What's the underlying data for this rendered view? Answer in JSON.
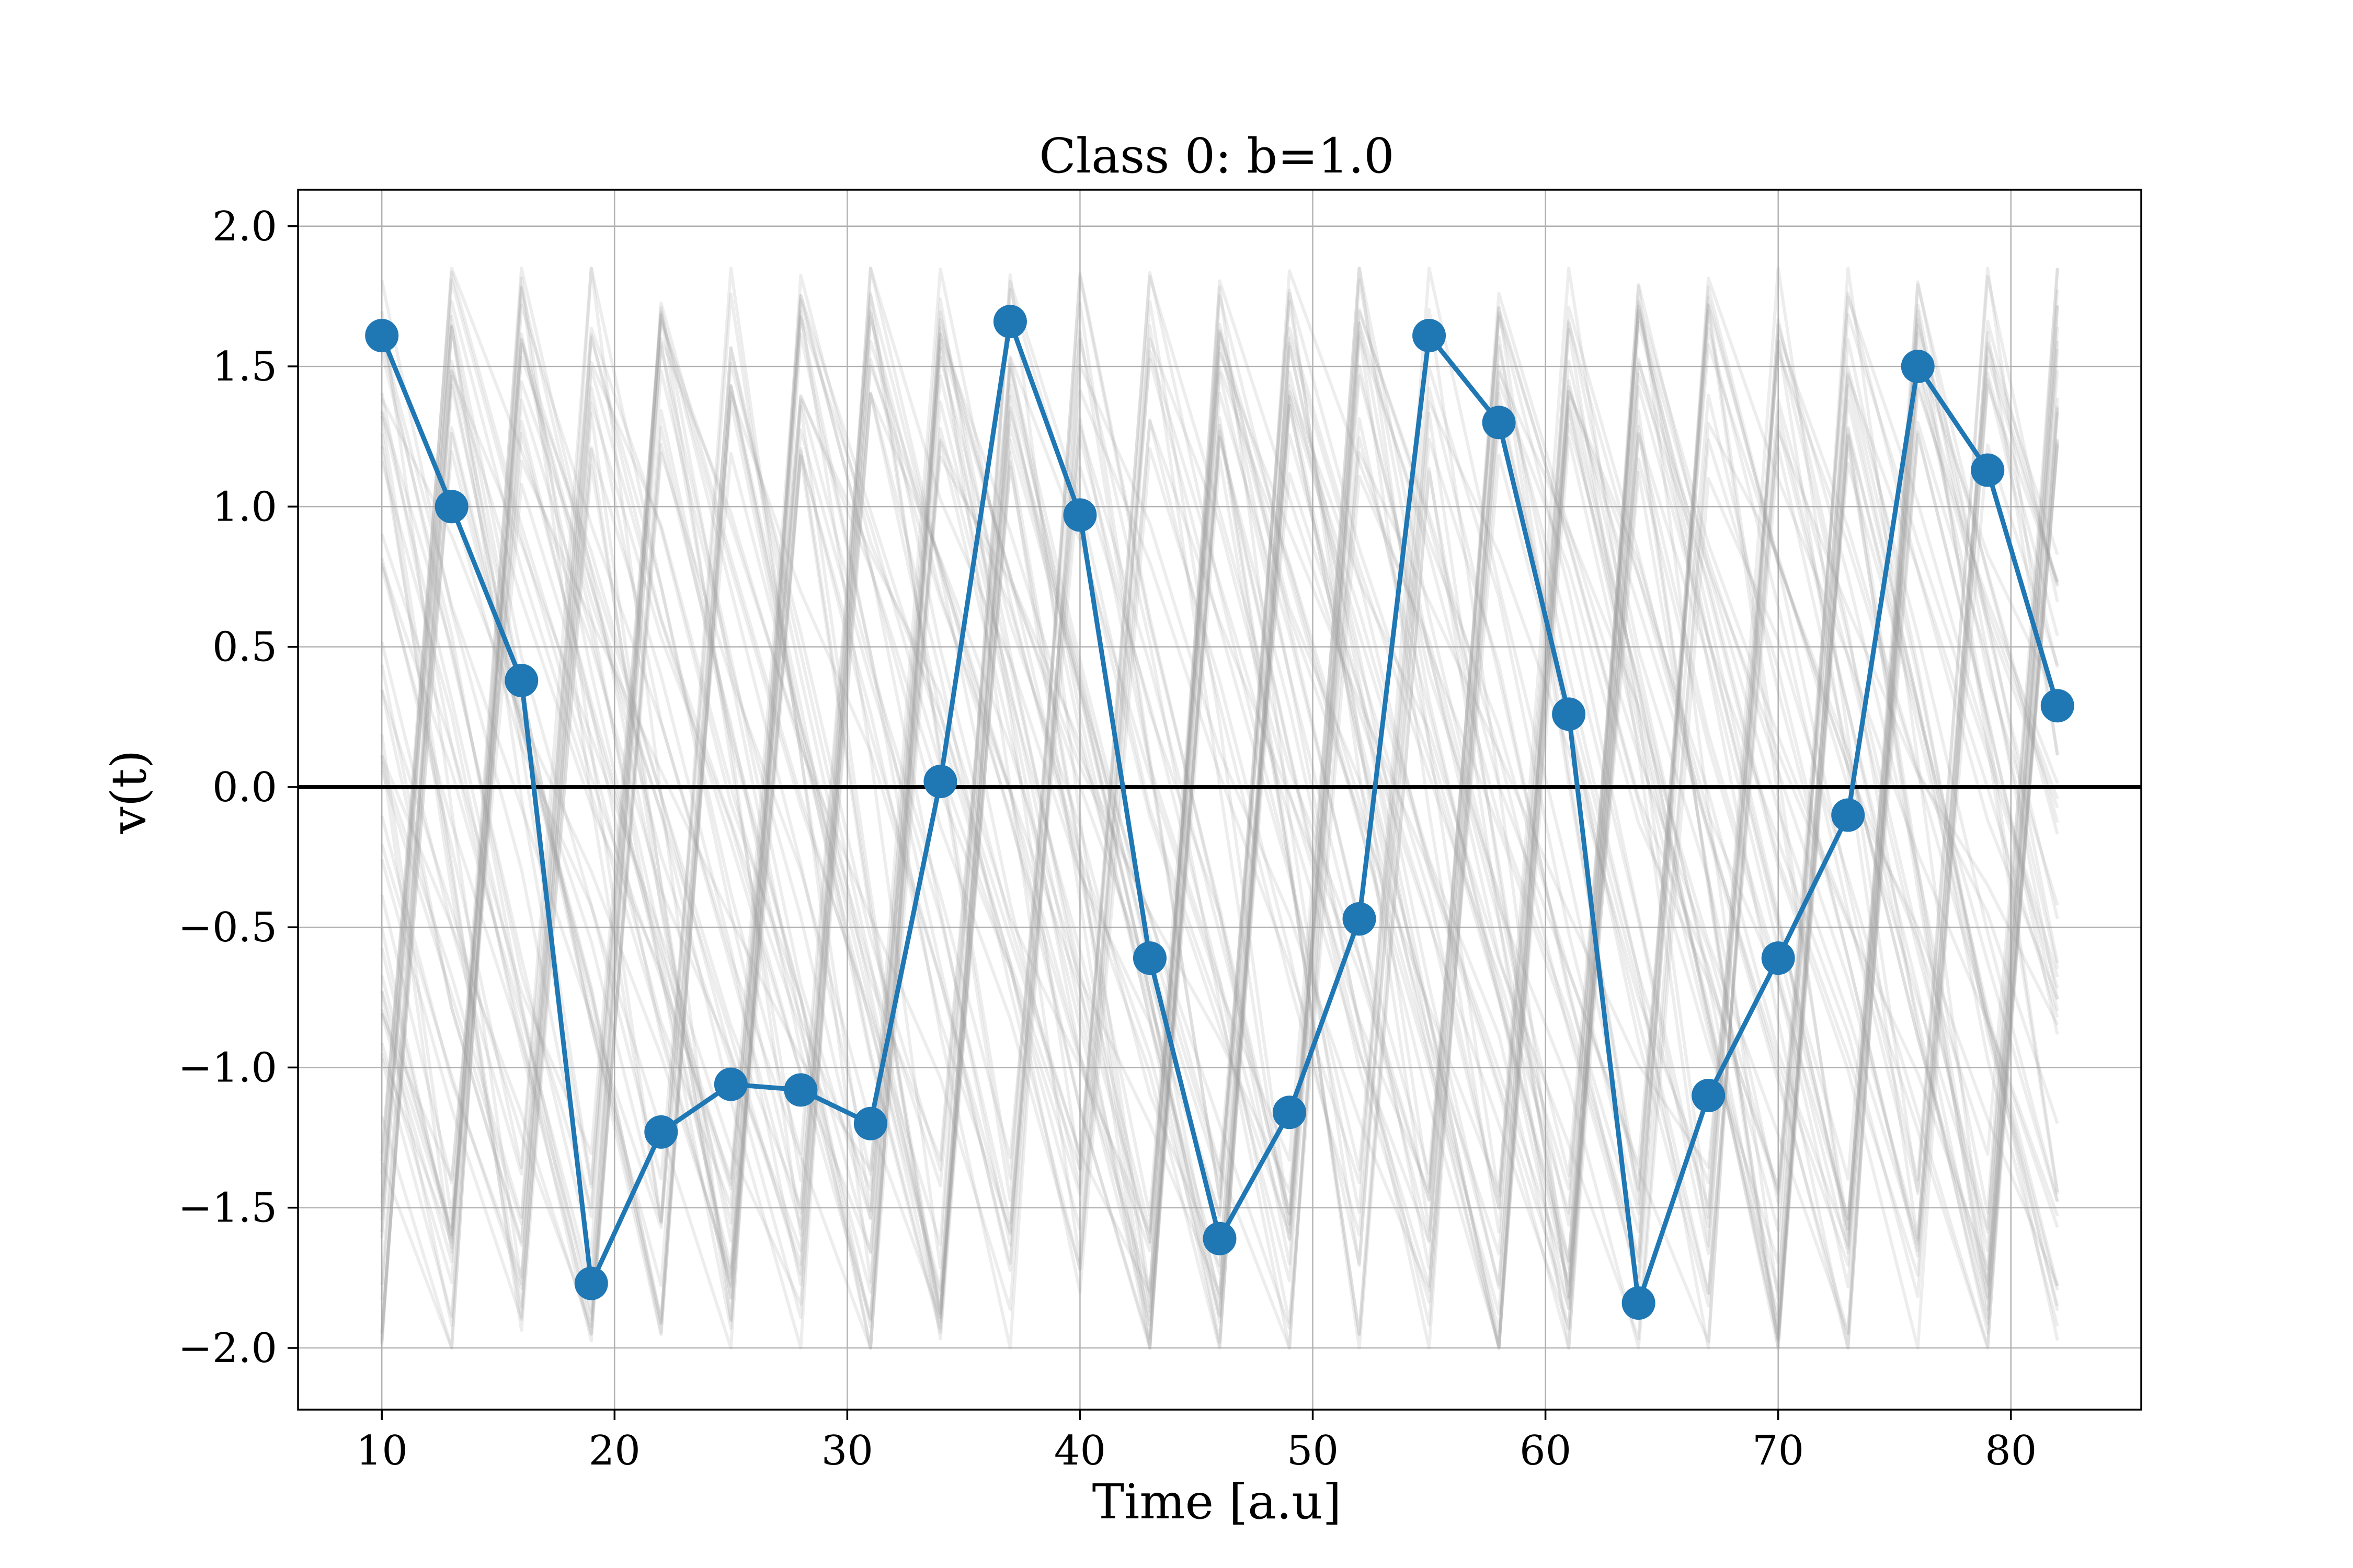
{
  "chart_data": {
    "type": "line",
    "title": "Class 0: b=1.0",
    "xlabel": "Time [a.u]",
    "ylabel": "v(t)",
    "xlim": [
      6.4,
      85.6
    ],
    "ylim": [
      -2.22,
      2.13
    ],
    "xticks": [
      10,
      20,
      30,
      40,
      50,
      60,
      70,
      80
    ],
    "xtick_labels": [
      "10",
      "20",
      "30",
      "40",
      "50",
      "60",
      "70",
      "80"
    ],
    "yticks": [
      2.0,
      1.5,
      1.0,
      0.5,
      0.0,
      -0.5,
      -1.0,
      -1.5,
      -2.0
    ],
    "ytick_labels": [
      "2.0",
      "1.5",
      "1.0",
      "0.5",
      "0.0",
      "−0.5",
      "−1.0",
      "−1.5",
      "−2.0"
    ],
    "grid": true,
    "hline_y": 0.0,
    "background_series": {
      "description_color": "#999999",
      "count": 60,
      "x_start": 10,
      "x_end": 82,
      "step": 3,
      "amplitude_range": [
        -2.0,
        1.85
      ]
    },
    "series": [
      {
        "x": [
          10,
          13,
          16,
          19,
          22,
          25,
          28,
          31,
          34,
          37,
          40,
          43,
          46,
          49,
          52,
          55,
          58,
          61,
          64,
          67,
          70,
          73,
          76,
          79,
          82
        ],
        "y": [
          1.61,
          1.0,
          0.38,
          -1.77,
          -1.23,
          -1.06,
          -1.08,
          -1.2,
          0.02,
          1.66,
          0.97,
          -0.61,
          -1.61,
          -1.16,
          -0.47,
          1.61,
          1.3,
          0.26,
          -1.84,
          -1.1,
          -0.61,
          -0.1,
          1.5,
          1.13,
          0.29
        ],
        "color": "#1f77b4"
      }
    ]
  }
}
